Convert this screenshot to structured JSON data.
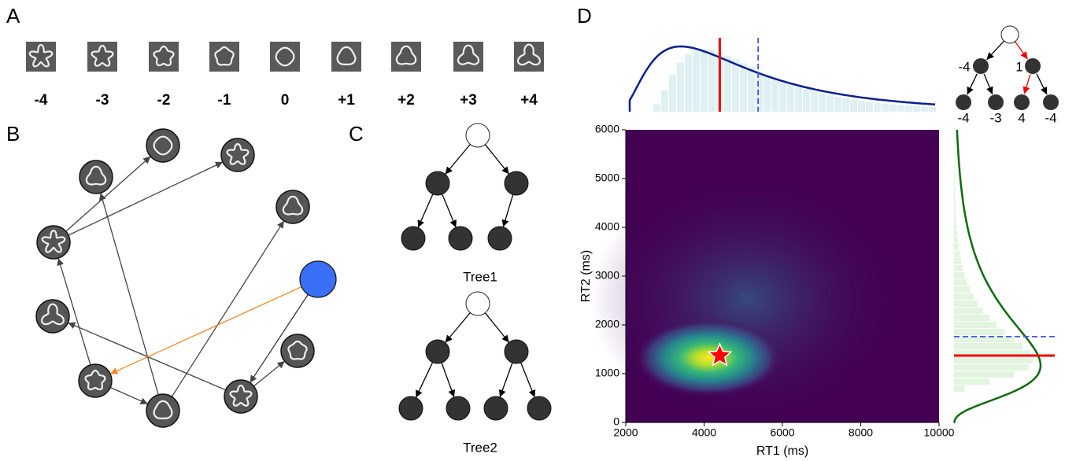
{
  "panels": {
    "a": "A",
    "b": "B",
    "c": "C",
    "d": "D"
  },
  "shape_levels": [
    "-4",
    "-3",
    "-2",
    "-1",
    "0",
    "+1",
    "+2",
    "+3",
    "+4"
  ],
  "trees": [
    "Tree1",
    "Tree2"
  ],
  "example_tree": {
    "inner": [
      -4,
      1
    ],
    "leaves": [
      -4,
      -3,
      4,
      -4
    ]
  },
  "chart_data": {
    "type": "scatter",
    "xlabel": "RT1 (ms)",
    "ylabel": "RT2 (ms)",
    "xlim": [
      2000,
      10000
    ],
    "ylim": [
      0,
      6000
    ],
    "xticks": [
      2000,
      4000,
      6000,
      8000,
      10000
    ],
    "yticks": [
      0,
      1000,
      2000,
      3000,
      4000,
      5000,
      6000
    ],
    "series": [
      {
        "color": "#ff0000",
        "x": [
          4400
        ],
        "values": [
          1370
        ]
      }
    ],
    "rt1_lines": {
      "red": 4400,
      "blue_dashed": 5380
    },
    "rt2_lines": {
      "red": 1370,
      "blue_dashed": 1760
    }
  }
}
